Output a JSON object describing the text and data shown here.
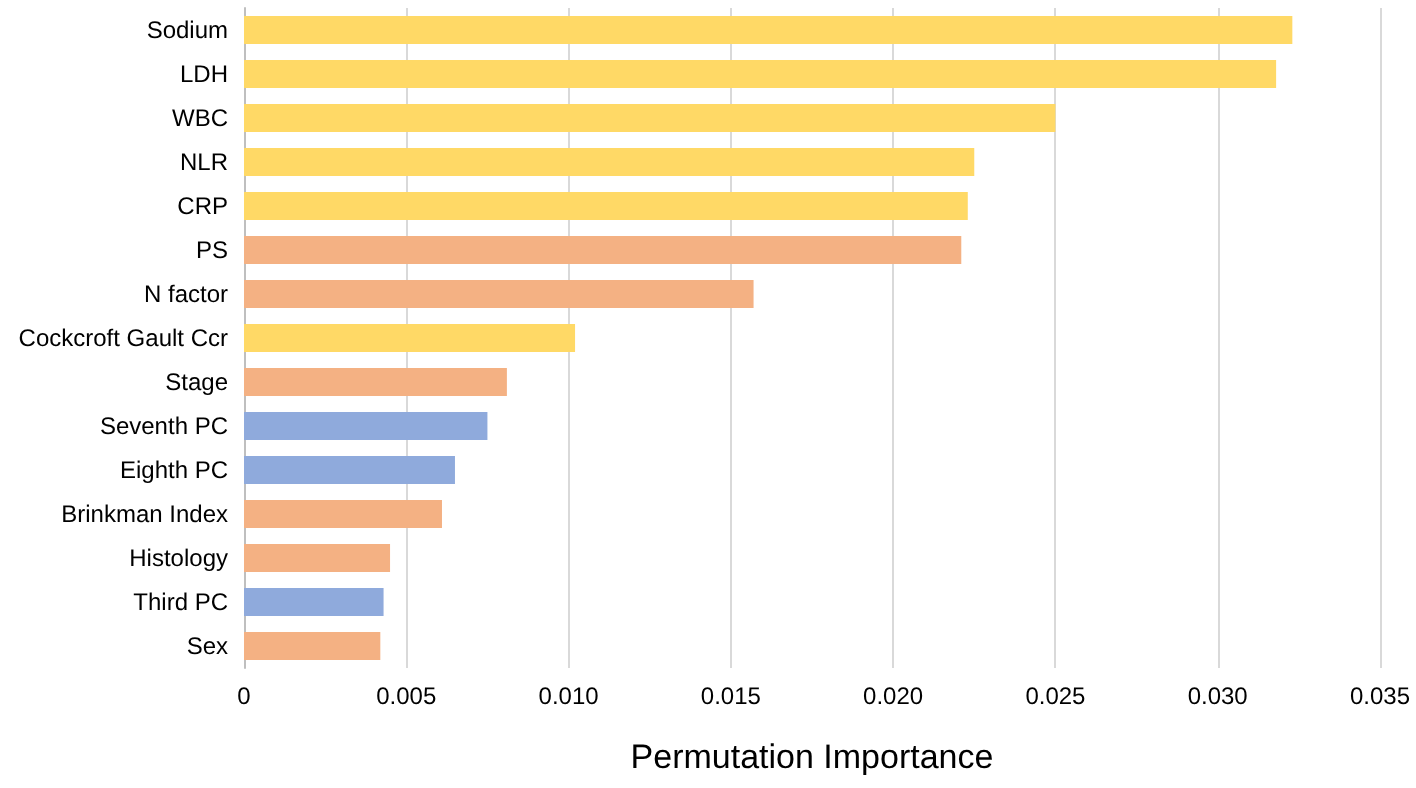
{
  "chart_data": {
    "type": "bar",
    "orientation": "horizontal",
    "xlabel": "Permutation Importance",
    "categories": [
      "Sodium",
      "LDH",
      "WBC",
      "NLR",
      "CRP",
      "PS",
      "N factor",
      "Cockcroft Gault Ccr",
      "Stage",
      "Seventh PC",
      "Eighth PC",
      "Brinkman Index",
      "Histology",
      "Third PC",
      "Sex"
    ],
    "values": [
      0.0323,
      0.0318,
      0.025,
      0.0225,
      0.0223,
      0.0221,
      0.0157,
      0.0102,
      0.0081,
      0.0075,
      0.0065,
      0.0061,
      0.0045,
      0.0043,
      0.0042
    ],
    "colors": [
      "#ffd966",
      "#ffd966",
      "#ffd966",
      "#ffd966",
      "#ffd966",
      "#f4b183",
      "#f4b183",
      "#ffd966",
      "#f4b183",
      "#8faadc",
      "#8faadc",
      "#f4b183",
      "#f4b183",
      "#8faadc",
      "#f4b183"
    ],
    "xlim": [
      0,
      0.035
    ],
    "xticks": [
      0,
      0.005,
      {
        "value": 0.01,
        "label": "0.010"
      },
      0.015,
      {
        "value": 0.02,
        "label": "0.020"
      },
      0.025,
      {
        "value": 0.03,
        "label": "0.030"
      },
      0.035
    ],
    "grid": "x"
  }
}
